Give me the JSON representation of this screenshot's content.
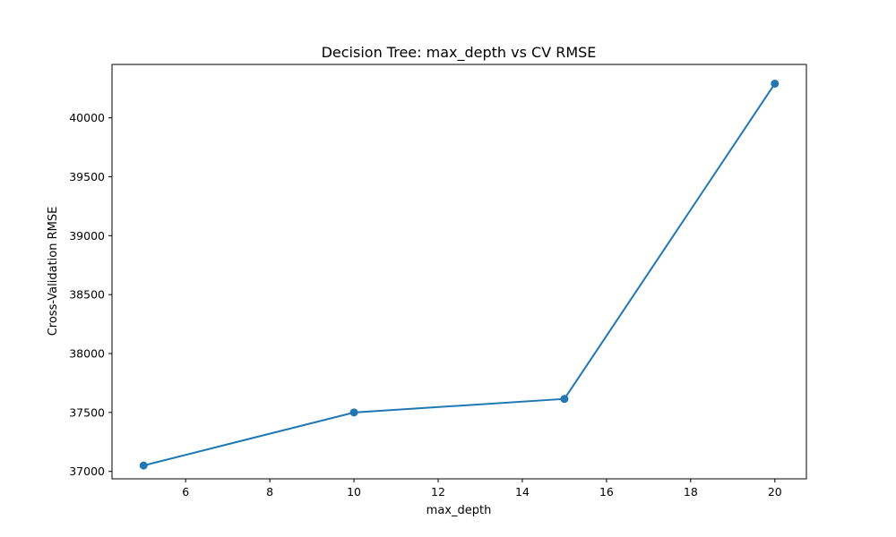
{
  "chart_data": {
    "type": "line",
    "title": "Decision Tree: max_depth vs CV RMSE",
    "xlabel": "max_depth",
    "ylabel": "Cross-Validation RMSE",
    "x": [
      5,
      10,
      15,
      20
    ],
    "series": [
      {
        "values": [
          37050,
          37500,
          37615,
          40290
        ],
        "color": "#1f77b4",
        "marker": "circle"
      }
    ],
    "xlim": [
      4.25,
      20.75
    ],
    "ylim": [
      36937,
      40453
    ],
    "xticks": [
      6,
      8,
      10,
      12,
      14,
      16,
      18,
      20
    ],
    "yticks": [
      37000,
      37500,
      38000,
      38500,
      39000,
      39500,
      40000
    ],
    "grid": false
  }
}
